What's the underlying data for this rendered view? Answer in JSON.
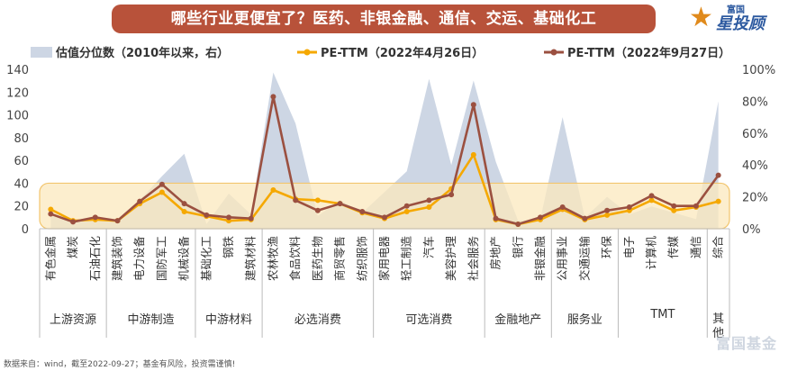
{
  "title": "哪些行业更便宜了？医药、非银金融、通信、交运、基础化工",
  "brand": {
    "line1": "富国",
    "line2": "星投顾"
  },
  "watermark": "富国基金",
  "source": "数据来自：wind，截至2022-09-27；基金有风险，投资需谨慎!",
  "chart_data": {
    "type": "line",
    "legend": [
      "估值分位数（2010年以来，右）",
      "PE-TTM（2022年4月26日）",
      "PE-TTM（2022年9月27日）"
    ],
    "colors": {
      "area": "#cdd6e4",
      "pe_apr": "#f5a800",
      "pe_sep": "#9b5040",
      "band": "#fbe8bd",
      "band_border": "#f2c56e"
    },
    "y_left": {
      "min": 0,
      "max": 140,
      "ticks": [
        "0",
        "20",
        "40",
        "60",
        "80",
        "100",
        "120",
        "140"
      ]
    },
    "y_right": {
      "min": 0,
      "max": 100,
      "ticks": [
        "0%",
        "20%",
        "40%",
        "60%",
        "80%",
        "100%"
      ]
    },
    "categories": [
      "有色金属",
      "煤炭",
      "石油石化",
      "建筑装饰",
      "电力设备",
      "国防军工",
      "机械设备",
      "基础化工",
      "钢铁",
      "建筑材料",
      "农林牧渔",
      "食品饮料",
      "医药生物",
      "商贸零售",
      "纺织服饰",
      "家用电器",
      "轻工制造",
      "汽车",
      "美容护理",
      "社会服务",
      "房地产",
      "银行",
      "非银金融",
      "公用事业",
      "交通运输",
      "环保",
      "电子",
      "计算机",
      "传媒",
      "通信",
      "综合"
    ],
    "groups": [
      {
        "label": "上游资源",
        "span": 3
      },
      {
        "label": "中游制造",
        "span": 4
      },
      {
        "label": "中游材料",
        "span": 3
      },
      {
        "label": "必选消费",
        "span": 5
      },
      {
        "label": "可选消费",
        "span": 5
      },
      {
        "label": "金融地产",
        "span": 3
      },
      {
        "label": "服务业",
        "span": 3
      },
      {
        "label": "TMT",
        "span": 4
      },
      {
        "label": "其他",
        "span": 1
      }
    ],
    "series": [
      {
        "name": "估值分位数（2010年以来，右）",
        "axis": "right",
        "type": "area",
        "values": [
          10,
          3,
          7,
          5,
          18,
          33,
          47,
          3,
          22,
          9,
          98,
          66,
          8,
          18,
          10,
          23,
          36,
          94,
          40,
          93,
          42,
          5,
          6,
          70,
          7,
          20,
          9,
          14,
          10,
          6,
          80
        ]
      },
      {
        "name": "PE-TTM（2022年4月26日）",
        "axis": "left",
        "type": "line",
        "values": [
          17,
          7,
          8,
          7,
          22,
          32,
          15,
          11,
          7,
          8,
          34,
          26,
          25,
          22,
          14,
          9,
          15,
          19,
          35,
          65,
          8,
          4,
          8,
          17,
          8,
          12,
          16,
          25,
          16,
          19,
          24
        ]
      },
      {
        "name": "PE-TTM（2022年9月27日）",
        "axis": "left",
        "type": "line",
        "values": [
          13,
          6,
          10,
          7,
          24,
          39,
          22,
          12,
          10,
          9,
          116,
          25,
          16,
          22,
          15,
          10,
          20,
          25,
          30,
          109,
          9,
          4,
          10,
          19,
          9,
          16,
          19,
          29,
          20,
          20,
          47
        ]
      }
    ],
    "highlight_band": {
      "from": 0,
      "to": 40,
      "axis": "left"
    }
  }
}
